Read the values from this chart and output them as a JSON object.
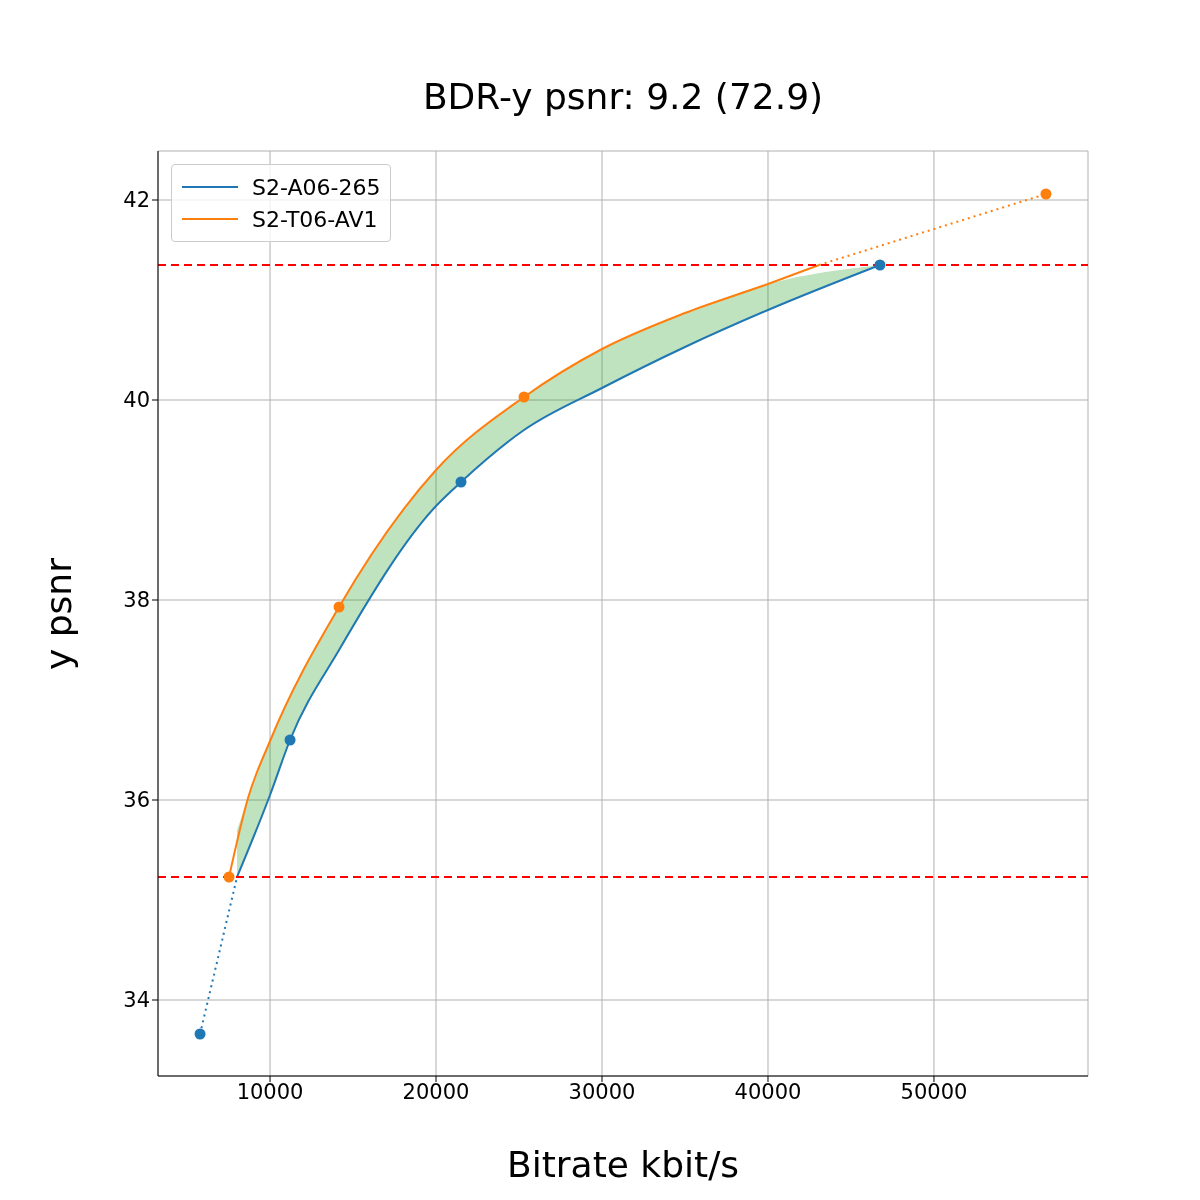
{
  "chart_data": {
    "type": "line",
    "title": "BDR-y psnr: 9.2 (72.9)",
    "xlabel": "Bitrate kbit/s",
    "ylabel": "y psnr",
    "xlim": [
      3250,
      59280
    ],
    "xticks": [
      10000,
      20000,
      30000,
      40000,
      50000
    ],
    "ylim": [
      33.24,
      42.49
    ],
    "yticks": [
      34,
      36,
      38,
      40,
      42
    ],
    "grid": true,
    "legend": "top left",
    "series": [
      {
        "name": "S2-A06-265",
        "color": "#1f77b4",
        "line_style": "solid",
        "marker": "none",
        "x": [
          8012,
          10000,
          11205,
          14157,
          20000,
          21506,
          25301,
          30000,
          35000,
          40000,
          46747
        ],
        "values": [
          35.23,
          36.05,
          36.6,
          37.5,
          38.94,
          39.18,
          39.7,
          40.12,
          40.53,
          40.9,
          41.35
        ],
        "lower": [
          35.23,
          36.05,
          36.6,
          37.5,
          38.94,
          39.18,
          39.7,
          40.12,
          40.53,
          40.9,
          41.35
        ],
        "upper": [
          35.7,
          36.59,
          37.05,
          37.93,
          39.3,
          39.55,
          40.03,
          40.51,
          40.87,
          41.16,
          41.35
        ]
      },
      {
        "color": "#1f77b4",
        "line_style": "dotted",
        "marker": "none",
        "x": [
          5783,
          8012
        ],
        "values": [
          33.66,
          35.23
        ]
      },
      {
        "name": "S2-T06-AV1",
        "color": "#ff7f0e",
        "line_style": "solid",
        "marker": "none",
        "x": [
          7530,
          8675,
          10000,
          14157,
          20000,
          25301,
          30000,
          35000,
          40000,
          43070
        ],
        "values": [
          35.23,
          36.02,
          36.59,
          37.93,
          39.3,
          40.03,
          40.51,
          40.87,
          41.16,
          41.35
        ]
      },
      {
        "color": "#ff7f0e",
        "line_style": "dotted",
        "marker": "none",
        "x": [
          43070,
          56747
        ],
        "values": [
          41.35,
          42.06
        ]
      },
      {
        "type": "scatter",
        "color": "#1f77b4",
        "marker": "circle",
        "x": [
          5783,
          11205,
          21506,
          46747
        ],
        "values": [
          33.66,
          36.6,
          39.18,
          41.35
        ]
      },
      {
        "type": "scatter",
        "color": "#ff7f0e",
        "marker": "circle",
        "x": [
          7530,
          14157,
          25301,
          56747
        ],
        "values": [
          35.23,
          37.93,
          40.03,
          42.06
        ]
      }
    ],
    "ref_lines": [
      {
        "axis": "y",
        "value": 35.23,
        "color": "#ff0000",
        "line_style": "dashed"
      },
      {
        "axis": "y",
        "value": 41.35,
        "color": "#ff0000",
        "line_style": "dashed"
      }
    ]
  }
}
